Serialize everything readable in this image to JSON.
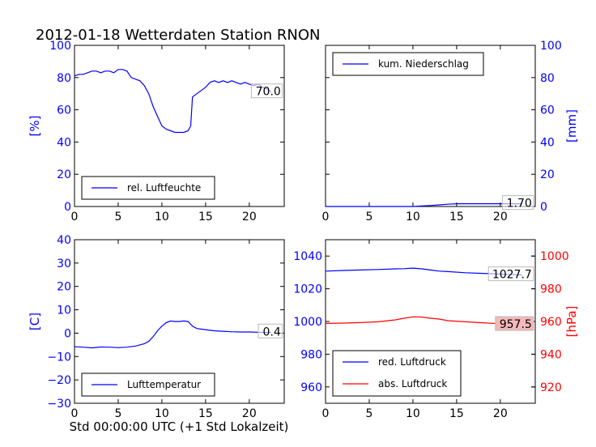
{
  "figure": {
    "title": "2012-01-18 Wetterdaten Station RNON",
    "xlabel": "Std 00:00:00 UTC (+1 Std Lokalzeit)"
  },
  "colors": {
    "blue": "#0000ff",
    "red": "#ff0000",
    "annot_box_red": "#f4b8b8"
  },
  "chart_data": [
    {
      "type": "line",
      "name": "humidity",
      "ylabel_left": "[%]",
      "xlim": [
        0,
        24
      ],
      "ylim": [
        0,
        100
      ],
      "xticks": [
        "0",
        "5",
        "10",
        "15",
        "20"
      ],
      "yticks_left": [
        "0",
        "20",
        "40",
        "60",
        "80",
        "100"
      ],
      "legend": "lower-left",
      "annotation": "70.0",
      "series": [
        {
          "name": "rel. Luftfeuchte",
          "color": "#0000ff",
          "x": [
            0,
            0.5,
            1,
            1.5,
            2,
            2.5,
            3,
            3.5,
            4,
            4.5,
            5,
            5.5,
            6,
            6.5,
            7,
            7.5,
            8,
            8.5,
            9,
            9.5,
            10,
            10.5,
            11,
            11.5,
            12,
            12.5,
            13,
            13.3,
            13.5,
            14,
            14.5,
            15,
            15.5,
            16,
            16.5,
            17,
            17.5,
            18,
            18.5,
            19,
            19.5,
            20,
            20.5,
            21,
            21.5,
            22,
            22.5
          ],
          "y": [
            81,
            82,
            82,
            83,
            84,
            84,
            83,
            84,
            84,
            83,
            85,
            85,
            84,
            80,
            79,
            78,
            75,
            70,
            62,
            56,
            50,
            48,
            47,
            46,
            46,
            46,
            47,
            50,
            68,
            70,
            72,
            74,
            77,
            78,
            77,
            78,
            77,
            78,
            77,
            76,
            77,
            76,
            75,
            76,
            74,
            73,
            71
          ]
        }
      ]
    },
    {
      "type": "line",
      "name": "precipitation",
      "ylabel_right": "[mm]",
      "xlim": [
        0,
        24
      ],
      "ylim": [
        0,
        100
      ],
      "xticks": [
        "0",
        "5",
        "10",
        "15",
        "20"
      ],
      "yticks_right": [
        "0",
        "20",
        "40",
        "60",
        "80",
        "100"
      ],
      "legend": "upper-left",
      "annotation": "1.70",
      "series": [
        {
          "name": "kum. Niederschlag",
          "color": "#0000ff",
          "x": [
            0,
            10,
            11,
            12,
            13,
            14,
            15,
            18,
            22.5
          ],
          "y": [
            0,
            0,
            0.3,
            0.6,
            1.0,
            1.4,
            1.7,
            1.7,
            1.7
          ]
        }
      ]
    },
    {
      "type": "line",
      "name": "temperature",
      "ylabel_left": "[C]",
      "xlim": [
        0,
        24
      ],
      "ylim": [
        -30,
        40
      ],
      "xticks": [
        "0",
        "5",
        "10",
        "15",
        "20"
      ],
      "yticks_left": [
        "−30",
        "−20",
        "−10",
        "0",
        "10",
        "20",
        "30",
        "40"
      ],
      "legend": "lower-left",
      "annotation": "0.4",
      "series": [
        {
          "name": "Lufttemperatur",
          "color": "#0000ff",
          "x": [
            0,
            1,
            2,
            3,
            4,
            5,
            6,
            7,
            8,
            8.5,
            9,
            9.5,
            10,
            10.5,
            11,
            11.5,
            12,
            12.5,
            13,
            13.5,
            14,
            15,
            16,
            17,
            18,
            19,
            20,
            21,
            22,
            22.5
          ],
          "y": [
            -5.8,
            -6.0,
            -6.3,
            -5.9,
            -6.0,
            -6.2,
            -6.0,
            -5.5,
            -4.5,
            -3.5,
            -1.5,
            1.0,
            3.0,
            4.5,
            5.2,
            5.0,
            5.0,
            5.2,
            5.0,
            3.0,
            2.0,
            1.5,
            1.0,
            0.8,
            0.6,
            0.5,
            0.5,
            0.4,
            0.3,
            0.4
          ]
        }
      ]
    },
    {
      "type": "line",
      "name": "pressure",
      "ylim_left": [
        950,
        1050
      ],
      "ylim_right": [
        910,
        1010
      ],
      "ylabel_right": "[hPa]",
      "xlim": [
        0,
        24
      ],
      "xticks": [
        "0",
        "5",
        "10",
        "15",
        "20"
      ],
      "yticks_left": [
        "960",
        "980",
        "1000",
        "1020",
        "1040"
      ],
      "yticks_right": [
        "920",
        "940",
        "960",
        "980",
        "1000"
      ],
      "legend": "lower-left",
      "annotations": [
        "1027.7",
        "957.5"
      ],
      "series": [
        {
          "name": "red. Luftdruck",
          "color": "#0000ff",
          "axis": "left",
          "x": [
            0,
            2,
            4,
            6,
            8,
            9,
            10,
            11,
            12,
            13,
            14,
            16,
            18,
            20,
            22.5
          ],
          "y": [
            1030.8,
            1031.2,
            1031.5,
            1031.8,
            1032.2,
            1032.3,
            1032.6,
            1032.2,
            1031.5,
            1030.8,
            1030.5,
            1029.8,
            1029.4,
            1029.0,
            1028.4
          ]
        },
        {
          "name": "abs. Luftdruck",
          "color": "#ff0000",
          "axis": "right",
          "x": [
            0,
            2,
            4,
            6,
            8,
            9,
            10,
            11,
            12,
            13,
            14,
            16,
            18,
            20,
            22.5
          ],
          "y": [
            958.8,
            959.0,
            959.3,
            959.8,
            961.0,
            962.0,
            962.8,
            962.7,
            962.0,
            961.5,
            960.5,
            959.8,
            959.2,
            958.6,
            958.0
          ]
        }
      ]
    }
  ]
}
